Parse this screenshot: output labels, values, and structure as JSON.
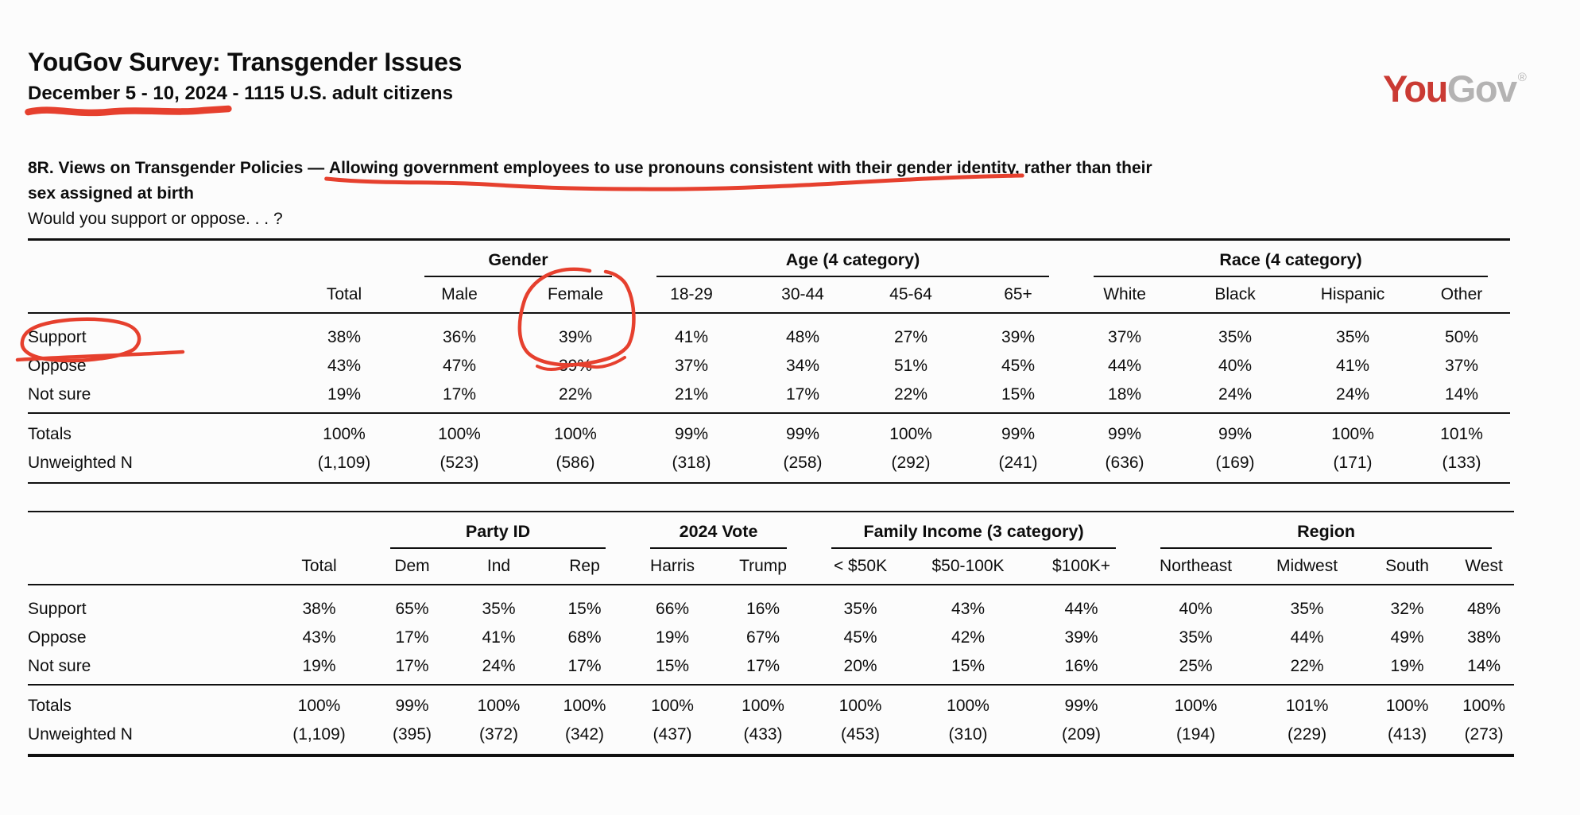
{
  "header": {
    "title": "YouGov Survey: Transgender Issues",
    "subtitle_underlined": "December 5 - 10, 2024",
    "subtitle_rest": " - 1115 U.S. adult citizens",
    "logo": {
      "part1": "You",
      "part2": "Gov",
      "registered": "®",
      "red": "#ca3a33",
      "gray": "#b4b3b3"
    }
  },
  "question": {
    "line1_prefix": "8R. Views on Transgender Policies — ",
    "line1_underlined": "Allowing government employees to use pronouns consistent with their gender identity,",
    "line1_suffix": " rather than their",
    "line2": "sex assigned at birth",
    "prompt": "Would you support or oppose. . . ?"
  },
  "annotations": {
    "color": "#e6402e",
    "items": [
      "date-underline",
      "question-phrase-underline",
      "support-row-circle",
      "female-column-circle-with-39%"
    ]
  },
  "table1": {
    "groups": [
      {
        "label": "",
        "span": 2
      },
      {
        "label": "Gender",
        "span": 2
      },
      {
        "label": "Age (4 category)",
        "span": 4
      },
      {
        "label": "Race (4 category)",
        "span": 4
      }
    ],
    "columns": [
      "",
      "Total",
      "Male",
      "Female",
      "18-29",
      "30-44",
      "45-64",
      "65+",
      "White",
      "Black",
      "Hispanic",
      "Other"
    ],
    "rows": [
      {
        "label": "Support",
        "values": [
          "38%",
          "36%",
          "39%",
          "41%",
          "48%",
          "27%",
          "39%",
          "37%",
          "35%",
          "35%",
          "50%"
        ]
      },
      {
        "label": "Oppose",
        "values": [
          "43%",
          "47%",
          "39%",
          "37%",
          "34%",
          "51%",
          "45%",
          "44%",
          "40%",
          "41%",
          "37%"
        ]
      },
      {
        "label": "Not sure",
        "values": [
          "19%",
          "17%",
          "22%",
          "21%",
          "17%",
          "22%",
          "15%",
          "18%",
          "24%",
          "24%",
          "14%"
        ]
      }
    ],
    "summary_rows": [
      {
        "label": "Totals",
        "values": [
          "100%",
          "100%",
          "100%",
          "99%",
          "99%",
          "100%",
          "99%",
          "99%",
          "99%",
          "100%",
          "101%"
        ]
      },
      {
        "label": "Unweighted N",
        "values": [
          "(1,109)",
          "(523)",
          "(586)",
          "(318)",
          "(258)",
          "(292)",
          "(241)",
          "(636)",
          "(169)",
          "(171)",
          "(133)"
        ]
      }
    ]
  },
  "table2": {
    "groups": [
      {
        "label": "",
        "span": 2
      },
      {
        "label": "Party ID",
        "span": 3
      },
      {
        "label": "2024 Vote",
        "span": 2
      },
      {
        "label": "Family Income (3 category)",
        "span": 3
      },
      {
        "label": "Region",
        "span": 4
      }
    ],
    "columns": [
      "",
      "Total",
      "Dem",
      "Ind",
      "Rep",
      "Harris",
      "Trump",
      "< $50K",
      "$50-100K",
      "$100K+",
      "Northeast",
      "Midwest",
      "South",
      "West"
    ],
    "rows": [
      {
        "label": "Support",
        "values": [
          "38%",
          "65%",
          "35%",
          "15%",
          "66%",
          "16%",
          "35%",
          "43%",
          "44%",
          "40%",
          "35%",
          "32%",
          "48%"
        ]
      },
      {
        "label": "Oppose",
        "values": [
          "43%",
          "17%",
          "41%",
          "68%",
          "19%",
          "67%",
          "45%",
          "42%",
          "39%",
          "35%",
          "44%",
          "49%",
          "38%"
        ]
      },
      {
        "label": "Not sure",
        "values": [
          "19%",
          "17%",
          "24%",
          "17%",
          "15%",
          "17%",
          "20%",
          "15%",
          "16%",
          "25%",
          "22%",
          "19%",
          "14%"
        ]
      }
    ],
    "summary_rows": [
      {
        "label": "Totals",
        "values": [
          "100%",
          "99%",
          "100%",
          "100%",
          "100%",
          "100%",
          "100%",
          "100%",
          "99%",
          "100%",
          "101%",
          "100%",
          "100%"
        ]
      },
      {
        "label": "Unweighted N",
        "values": [
          "(1,109)",
          "(395)",
          "(372)",
          "(342)",
          "(437)",
          "(433)",
          "(453)",
          "(310)",
          "(209)",
          "(194)",
          "(229)",
          "(413)",
          "(273)"
        ]
      }
    ]
  }
}
